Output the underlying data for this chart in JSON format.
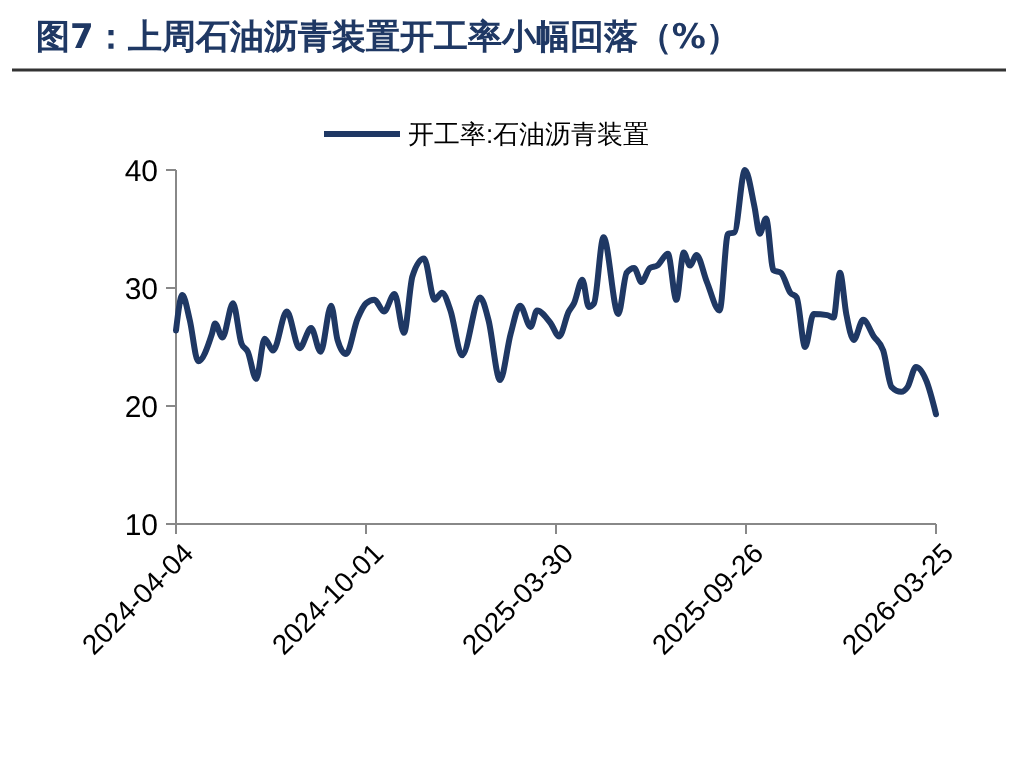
{
  "chart_data": {
    "type": "line",
    "title": "图7：上周石油沥青装置开工率小幅回落（%）",
    "xlim": [
      "2024-04-04",
      "2026-03-25"
    ],
    "xticks": [
      {
        "value": "2024-04-04",
        "label": "2024-04-04"
      },
      {
        "value": "2024-10-01",
        "label": "2024-10-01"
      },
      {
        "value": "2025-03-30",
        "label": "2025-03-30"
      },
      {
        "value": "2025-09-26",
        "label": "2025-09-26"
      },
      {
        "value": "2026-03-25",
        "label": "2026-03-25"
      }
    ],
    "ylim": [
      10,
      40
    ],
    "yticks": [
      10,
      20,
      30,
      40
    ],
    "grid": false,
    "legend": "top",
    "marker": "none",
    "line_style": "solid",
    "series": [
      {
        "name": "开工率:石油沥青装置",
        "color": "#1f3864",
        "x": [
          "2024-04-04",
          "2024-04-10",
          "2024-04-17",
          "2024-04-25",
          "2024-05-08",
          "2024-05-11",
          "2024-05-18",
          "2024-05-28",
          "2024-06-05",
          "2024-06-11",
          "2024-06-19",
          "2024-06-27",
          "2024-07-05",
          "2024-07-18",
          "2024-07-30",
          "2024-08-10",
          "2024-08-19",
          "2024-08-29",
          "2024-09-04",
          "2024-09-12",
          "2024-09-23",
          "2024-10-01",
          "2024-10-09",
          "2024-10-18",
          "2024-10-28",
          "2024-11-06",
          "2024-11-14",
          "2024-11-25",
          "2024-12-05",
          "2024-12-12",
          "2024-12-20",
          "2024-12-31",
          "2025-01-17",
          "2025-01-25",
          "2025-02-05",
          "2025-02-15",
          "2025-02-24",
          "2025-03-06",
          "2025-03-12",
          "2025-03-25",
          "2025-04-02",
          "2025-04-11",
          "2025-04-16",
          "2025-04-24",
          "2025-04-30",
          "2025-05-05",
          "2025-05-14",
          "2025-05-28",
          "2025-06-05",
          "2025-06-12",
          "2025-06-19",
          "2025-06-27",
          "2025-07-04",
          "2025-07-14",
          "2025-07-22",
          "2025-07-29",
          "2025-08-04",
          "2025-08-10",
          "2025-08-20",
          "2025-09-01",
          "2025-09-09",
          "2025-09-15",
          "2025-09-25",
          "2025-10-04",
          "2025-10-09",
          "2025-10-15",
          "2025-10-22",
          "2025-10-29",
          "2025-11-07",
          "2025-11-13",
          "2025-11-21",
          "2025-11-29",
          "2025-12-12",
          "2025-12-18",
          "2025-12-24",
          "2025-12-30",
          "2026-01-06",
          "2026-01-15",
          "2026-01-25",
          "2026-02-03",
          "2026-02-11",
          "2026-02-20",
          "2026-02-26",
          "2026-03-06",
          "2026-03-16",
          "2026-03-25"
        ],
        "values": [
          26.4,
          29.4,
          27.3,
          23.8,
          26.1,
          27,
          25.8,
          28.7,
          25.3,
          24.6,
          22.3,
          25.7,
          24.7,
          28,
          24.9,
          26.6,
          24.6,
          28.5,
          25.6,
          24.4,
          27.4,
          28.7,
          29,
          28,
          29.5,
          26.2,
          31,
          32.5,
          29,
          29.6,
          28.1,
          24.3,
          29.2,
          27.3,
          22.2,
          26.1,
          28.5,
          26.7,
          28.1,
          27,
          25.9,
          28,
          28.7,
          30.7,
          28.4,
          28.7,
          34.3,
          27.8,
          31.3,
          31.7,
          30.5,
          31.7,
          31.9,
          32.9,
          29,
          33,
          31.9,
          32.8,
          30.5,
          28.1,
          34.6,
          34.7,
          40,
          36.9,
          34.6,
          35.9,
          31.5,
          31.3,
          29.6,
          29.2,
          25,
          27.8,
          27.7,
          27.5,
          31.3,
          27.8,
          25.6,
          27.3,
          25.9,
          24.7,
          21.6,
          21.2,
          21.6,
          23.3,
          22.1,
          19.3
        ]
      }
    ]
  }
}
